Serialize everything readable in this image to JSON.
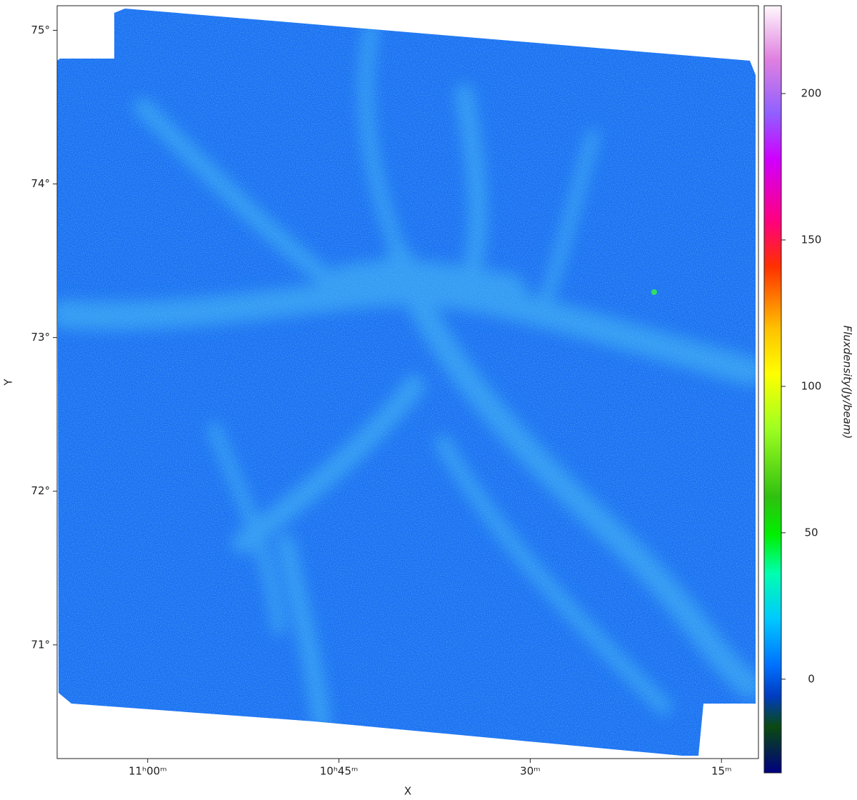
{
  "chart_data": {
    "type": "image",
    "x_label": "X",
    "y_label": "Y",
    "xlim": [
      667.1,
      612.1
    ],
    "xticks": [
      {
        "value": 660,
        "label": "11ʰ00ᵐ"
      },
      {
        "value": 645,
        "label": "10ʰ45ᵐ"
      },
      {
        "value": 630,
        "label": "30ᵐ"
      },
      {
        "value": 615,
        "label": "15ᵐ"
      }
    ],
    "ylim": [
      70.26,
      75.16
    ],
    "yticks": [
      {
        "value": 75,
        "label": "75°"
      },
      {
        "value": 74,
        "label": "74°"
      },
      {
        "value": 73,
        "label": "73°"
      },
      {
        "value": 72,
        "label": "72°"
      },
      {
        "value": 71,
        "label": "71°"
      }
    ],
    "colorbar": {
      "label": "Fluxdensity(Jy/beam)",
      "lim": [
        -32,
        230
      ],
      "ticks": [
        0,
        50,
        100,
        150,
        200
      ]
    }
  }
}
